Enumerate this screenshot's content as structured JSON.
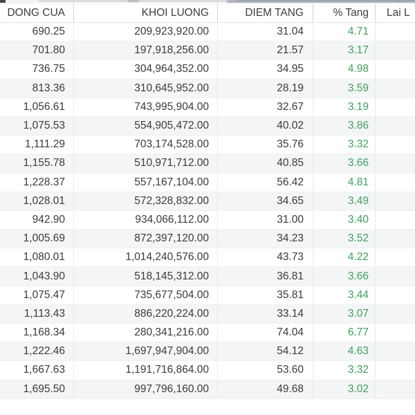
{
  "colors": {
    "text": "#3a3a3a",
    "percent_green": "#41a05f",
    "row_stripe": "#f3f5f6",
    "grid_line": "#e7e9eb",
    "header_grid_line": "#cfd3d6",
    "scroll_thumb": "#a9b1bb",
    "corner_block": "#3e4a52"
  },
  "table": {
    "columns": [
      {
        "key": "dong_cua",
        "label": "DONG CUA"
      },
      {
        "key": "khoi_luong",
        "label": "KHOI LUONG"
      },
      {
        "key": "diem_tang",
        "label": "DIEM TANG"
      },
      {
        "key": "pct_tang",
        "label": "% Tang"
      },
      {
        "key": "lai",
        "label": "Lai L"
      }
    ],
    "rows": [
      [
        "690.25",
        "209,923,920.00",
        "31.04",
        "4.71",
        ""
      ],
      [
        "701.80",
        "197,918,256.00",
        "21.57",
        "3.17",
        ""
      ],
      [
        "736.75",
        "304,964,352.00",
        "34.95",
        "4.98",
        ""
      ],
      [
        "813.36",
        "310,645,952.00",
        "28.19",
        "3.59",
        ""
      ],
      [
        "1,056.61",
        "743,995,904.00",
        "32.67",
        "3.19",
        ""
      ],
      [
        "1,075.53",
        "554,905,472.00",
        "40.02",
        "3.86",
        ""
      ],
      [
        "1,111.29",
        "703,174,528.00",
        "35.76",
        "3.32",
        ""
      ],
      [
        "1,155.78",
        "510,971,712.00",
        "40.85",
        "3.66",
        ""
      ],
      [
        "1,228.37",
        "557,167,104.00",
        "56.42",
        "4.81",
        ""
      ],
      [
        "1,028.01",
        "572,328,832.00",
        "34.65",
        "3.49",
        ""
      ],
      [
        "942.90",
        "934,066,112.00",
        "31.00",
        "3.40",
        ""
      ],
      [
        "1,005.69",
        "872,397,120.00",
        "34.23",
        "3.52",
        ""
      ],
      [
        "1,080.01",
        "1,014,240,576.00",
        "43.73",
        "4.22",
        ""
      ],
      [
        "1,043.90",
        "518,145,312.00",
        "36.81",
        "3.66",
        ""
      ],
      [
        "1,075.47",
        "735,677,504.00",
        "35.81",
        "3.44",
        ""
      ],
      [
        "1,113.43",
        "886,220,224.00",
        "33.14",
        "3.07",
        ""
      ],
      [
        "1,168.34",
        "280,341,216.00",
        "74.04",
        "6.77",
        ""
      ],
      [
        "1,222.46",
        "1,697,947,904.00",
        "54.12",
        "4.63",
        ""
      ],
      [
        "1,667.63",
        "1,191,716,864.00",
        "53.60",
        "3.32",
        ""
      ],
      [
        "1,695.50",
        "997,796,160.00",
        "49.68",
        "3.02",
        ""
      ]
    ]
  }
}
